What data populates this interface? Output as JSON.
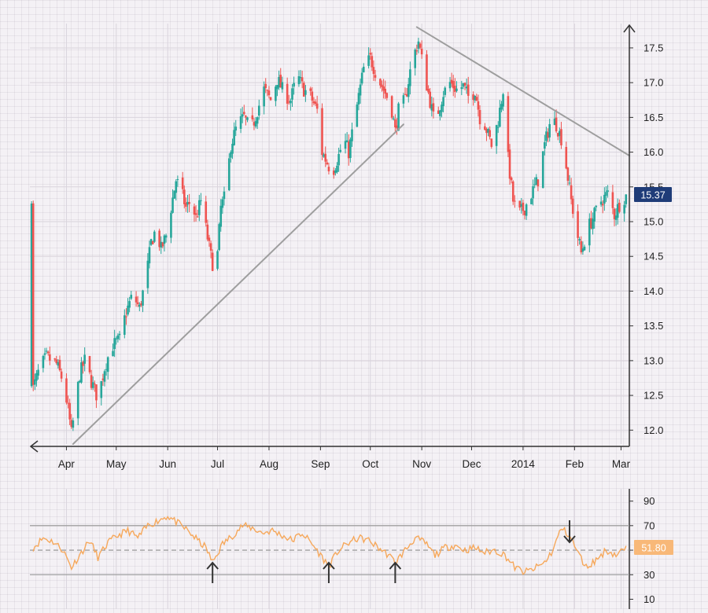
{
  "colors": {
    "up": "#26a69a",
    "down": "#ef5350",
    "trendline": "#9e9e9e",
    "rsi": "#f6a85b",
    "price_tag_bg": "#1f3c78",
    "rsi_tag_bg": "#f8b878",
    "axis": "#333333",
    "grid": "#d9d4dc"
  },
  "chart_data": [
    {
      "type": "candlestick",
      "title": "",
      "x_tick_labels": [
        "Apr",
        "May",
        "Jun",
        "Jul",
        "Aug",
        "Sep",
        "Oct",
        "Nov",
        "Dec",
        "2014",
        "Feb",
        "Mar"
      ],
      "x_tick_dates": [
        "2013-04-01",
        "2013-05-01",
        "2013-06-01",
        "2013-07-01",
        "2013-08-01",
        "2013-09-01",
        "2013-10-01",
        "2013-11-01",
        "2013-12-01",
        "2014-01-01",
        "2014-02-01",
        "2014-03-01"
      ],
      "y_ticks": [
        12.0,
        12.5,
        13.0,
        13.5,
        14.0,
        14.5,
        15.0,
        15.5,
        16.0,
        16.5,
        17.0,
        17.5
      ],
      "y_tick_labels": [
        "12.0",
        "12.5",
        "13.0",
        "13.5",
        "14.0",
        "14.5",
        "15.0",
        "15.5",
        "16.0",
        "16.5",
        "17.0",
        "17.5"
      ],
      "ylim": [
        11.8,
        17.85
      ],
      "grid": true,
      "last_price_label": "15.37",
      "close_points": [
        [
          "2013-03-12",
          12.6
        ],
        [
          "2013-03-16",
          12.9
        ],
        [
          "2013-03-20",
          13.05
        ],
        [
          "2013-03-26",
          12.95
        ],
        [
          "2013-03-30",
          12.7
        ],
        [
          "2013-04-02",
          12.3
        ],
        [
          "2013-04-04",
          11.95
        ],
        [
          "2013-04-09",
          12.8
        ],
        [
          "2013-04-12",
          13.0
        ],
        [
          "2013-04-16",
          12.7
        ],
        [
          "2013-04-20",
          12.45
        ],
        [
          "2013-04-24",
          12.9
        ],
        [
          "2013-04-28",
          13.2
        ],
        [
          "2013-05-03",
          13.3
        ],
        [
          "2013-05-07",
          13.7
        ],
        [
          "2013-05-11",
          13.95
        ],
        [
          "2013-05-15",
          13.75
        ],
        [
          "2013-05-19",
          14.2
        ],
        [
          "2013-05-22",
          14.7
        ],
        [
          "2013-05-25",
          14.9
        ],
        [
          "2013-05-28",
          14.6
        ],
        [
          "2013-05-31",
          14.8
        ],
        [
          "2013-06-03",
          15.2
        ],
        [
          "2013-06-06",
          15.6
        ],
        [
          "2013-06-09",
          15.45
        ],
        [
          "2013-06-12",
          15.2
        ],
        [
          "2013-06-15",
          15.3
        ],
        [
          "2013-06-18",
          15.05
        ],
        [
          "2013-06-21",
          15.3
        ],
        [
          "2013-06-24",
          14.9
        ],
        [
          "2013-06-27",
          14.5
        ],
        [
          "2013-06-30",
          14.2
        ],
        [
          "2013-07-03",
          15.2
        ],
        [
          "2013-07-06",
          15.4
        ],
        [
          "2013-07-09",
          16.1
        ],
        [
          "2013-07-13",
          16.4
        ],
        [
          "2013-07-17",
          16.5
        ],
        [
          "2013-07-21",
          16.3
        ],
        [
          "2013-07-25",
          16.6
        ],
        [
          "2013-07-29",
          16.9
        ],
        [
          "2013-08-02",
          16.75
        ],
        [
          "2013-08-06",
          17.05
        ],
        [
          "2013-08-10",
          16.85
        ],
        [
          "2013-08-14",
          16.75
        ],
        [
          "2013-08-18",
          17.1
        ],
        [
          "2013-08-22",
          16.9
        ],
        [
          "2013-08-26",
          16.8
        ],
        [
          "2013-08-30",
          16.6
        ],
        [
          "2013-09-02",
          16.0
        ],
        [
          "2013-09-05",
          15.85
        ],
        [
          "2013-09-08",
          15.7
        ],
        [
          "2013-09-12",
          15.95
        ],
        [
          "2013-09-15",
          16.2
        ],
        [
          "2013-09-18",
          16.0
        ],
        [
          "2013-09-21",
          16.4
        ],
        [
          "2013-09-24",
          16.8
        ],
        [
          "2013-09-27",
          17.2
        ],
        [
          "2013-10-01",
          17.35
        ],
        [
          "2013-10-05",
          17.1
        ],
        [
          "2013-10-08",
          16.95
        ],
        [
          "2013-10-11",
          16.8
        ],
        [
          "2013-10-14",
          16.6
        ],
        [
          "2013-10-16",
          16.3
        ],
        [
          "2013-10-18",
          16.6
        ],
        [
          "2013-10-22",
          16.75
        ],
        [
          "2013-10-26",
          17.3
        ],
        [
          "2013-10-30",
          17.6
        ],
        [
          "2013-11-02",
          17.2
        ],
        [
          "2013-11-05",
          16.85
        ],
        [
          "2013-11-08",
          16.5
        ],
        [
          "2013-11-11",
          16.6
        ],
        [
          "2013-11-14",
          16.85
        ],
        [
          "2013-11-18",
          17.0
        ],
        [
          "2013-11-22",
          16.9
        ],
        [
          "2013-11-26",
          16.95
        ],
        [
          "2013-11-30",
          16.75
        ],
        [
          "2013-12-03",
          16.9
        ],
        [
          "2013-12-06",
          16.5
        ],
        [
          "2013-12-09",
          16.4
        ],
        [
          "2013-12-13",
          16.1
        ],
        [
          "2013-12-17",
          16.45
        ],
        [
          "2013-12-20",
          16.9
        ],
        [
          "2013-12-23",
          15.9
        ],
        [
          "2013-12-26",
          15.3
        ],
        [
          "2013-12-29",
          15.1
        ],
        [
          "2014-01-02",
          15.2
        ],
        [
          "2014-01-06",
          15.4
        ],
        [
          "2014-01-10",
          15.6
        ],
        [
          "2014-01-14",
          16.1
        ],
        [
          "2014-01-18",
          16.5
        ],
        [
          "2014-01-21",
          16.4
        ],
        [
          "2014-01-24",
          16.2
        ],
        [
          "2014-01-27",
          15.8
        ],
        [
          "2014-01-30",
          15.3
        ],
        [
          "2014-02-02",
          14.9
        ],
        [
          "2014-02-05",
          14.55
        ],
        [
          "2014-02-09",
          14.9
        ],
        [
          "2014-02-13",
          15.1
        ],
        [
          "2014-02-17",
          15.3
        ],
        [
          "2014-02-21",
          15.4
        ],
        [
          "2014-02-25",
          15.1
        ],
        [
          "2014-03-01",
          15.3
        ],
        [
          "2014-03-04",
          15.37
        ]
      ],
      "trendlines": [
        {
          "from": [
            "2013-04-05",
            11.8
          ],
          "to": [
            "2013-10-21",
            16.4
          ]
        },
        {
          "from": [
            "2013-10-29",
            17.8
          ],
          "to": [
            "2014-03-06",
            15.95
          ]
        }
      ],
      "annotations": [
        {
          "type": "arrow-up",
          "position": "top-right corner"
        },
        {
          "type": "arrow-left",
          "position": "bottom-left corner"
        }
      ]
    },
    {
      "type": "line",
      "title": "",
      "series": [
        {
          "points": [
            [
              "2013-03-12",
              52
            ],
            [
              "2013-03-18",
              60
            ],
            [
              "2013-03-24",
              57
            ],
            [
              "2013-03-30",
              50
            ],
            [
              "2013-04-04",
              36
            ],
            [
              "2013-04-10",
              48
            ],
            [
              "2013-04-15",
              58
            ],
            [
              "2013-04-20",
              44
            ],
            [
              "2013-04-26",
              56
            ],
            [
              "2013-05-02",
              62
            ],
            [
              "2013-05-08",
              66
            ],
            [
              "2013-05-14",
              60
            ],
            [
              "2013-05-20",
              70
            ],
            [
              "2013-05-26",
              74
            ],
            [
              "2013-06-01",
              78
            ],
            [
              "2013-06-07",
              72
            ],
            [
              "2013-06-13",
              66
            ],
            [
              "2013-06-19",
              58
            ],
            [
              "2013-06-24",
              52
            ],
            [
              "2013-06-28",
              40
            ],
            [
              "2013-07-04",
              55
            ],
            [
              "2013-07-10",
              62
            ],
            [
              "2013-07-16",
              70
            ],
            [
              "2013-07-22",
              68
            ],
            [
              "2013-07-28",
              64
            ],
            [
              "2013-08-03",
              66
            ],
            [
              "2013-08-09",
              62
            ],
            [
              "2013-08-15",
              58
            ],
            [
              "2013-08-21",
              64
            ],
            [
              "2013-08-27",
              55
            ],
            [
              "2013-09-01",
              46
            ],
            [
              "2013-09-06",
              37
            ],
            [
              "2013-09-12",
              50
            ],
            [
              "2013-09-18",
              56
            ],
            [
              "2013-09-24",
              60
            ],
            [
              "2013-09-30",
              58
            ],
            [
              "2013-10-06",
              52
            ],
            [
              "2013-10-12",
              46
            ],
            [
              "2013-10-16",
              40
            ],
            [
              "2013-10-22",
              50
            ],
            [
              "2013-10-28",
              60
            ],
            [
              "2013-11-03",
              56
            ],
            [
              "2013-11-09",
              46
            ],
            [
              "2013-11-15",
              52
            ],
            [
              "2013-11-21",
              54
            ],
            [
              "2013-11-27",
              50
            ],
            [
              "2013-12-03",
              52
            ],
            [
              "2013-12-09",
              48
            ],
            [
              "2013-12-15",
              50
            ],
            [
              "2013-12-21",
              46
            ],
            [
              "2013-12-27",
              36
            ],
            [
              "2014-01-02",
              32
            ],
            [
              "2014-01-08",
              35
            ],
            [
              "2014-01-14",
              40
            ],
            [
              "2014-01-19",
              50
            ],
            [
              "2014-01-24",
              68
            ],
            [
              "2014-01-29",
              62
            ],
            [
              "2014-02-03",
              48
            ],
            [
              "2014-02-08",
              36
            ],
            [
              "2014-02-14",
              42
            ],
            [
              "2014-02-20",
              50
            ],
            [
              "2014-02-26",
              46
            ],
            [
              "2014-03-04",
              51.8
            ]
          ]
        }
      ],
      "y_ticks": [
        10,
        30,
        50,
        70,
        90
      ],
      "y_tick_labels": [
        "10",
        "30",
        "50",
        "70",
        "90"
      ],
      "ylim": [
        2,
        100
      ],
      "reference_lines": [
        30,
        50,
        70
      ],
      "last_value_label": "51.80",
      "annotations": [
        {
          "type": "arrow-up",
          "date": "2013-06-28"
        },
        {
          "type": "arrow-up",
          "date": "2013-09-06"
        },
        {
          "type": "arrow-up",
          "date": "2013-10-16"
        },
        {
          "type": "arrow-down",
          "date": "2014-01-29"
        }
      ]
    }
  ]
}
